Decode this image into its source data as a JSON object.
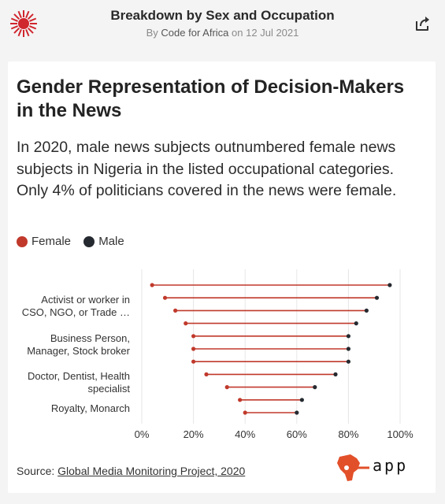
{
  "header": {
    "title": "Breakdown by Sex and Occupation",
    "byline_prefix": "By",
    "author": "Code for Africa",
    "date_prefix": "on",
    "date": "12 Jul 2021"
  },
  "icons": {
    "logo": "red-starburst-logo",
    "share": "share-icon",
    "brand": "africa-map-logo"
  },
  "colors": {
    "female": "#c0392b",
    "male": "#252a30",
    "line": "#c0392b",
    "grid": "#e6e6e6"
  },
  "chart_data": {
    "type": "dumbbell",
    "title": "Gender Representation of Decision-Makers in the News",
    "subtitle": "In 2020, male news subjects outnumbered female news subjects in Nigeria in the listed occupational categories. Only 4% of politicians covered in the news were female.",
    "legend": [
      {
        "label": "Female",
        "color": "#c0392b"
      },
      {
        "label": "Male",
        "color": "#252a30"
      }
    ],
    "legend_position": "top-left",
    "grid": "vertical",
    "xlim": [
      0,
      100
    ],
    "x_ticks": [
      "0%",
      "20%",
      "40%",
      "60%",
      "80%",
      "100%"
    ],
    "y_labels": [
      "Activist or worker in CSO, NGO, or Trade …",
      "Business Person, Manager, Stock broker",
      "Doctor, Dentist, Health specialist",
      "Royalty, Monarch"
    ],
    "series": [
      {
        "name": "Female",
        "values": [
          4,
          9,
          13,
          17,
          20,
          20,
          20,
          25,
          33,
          38,
          40
        ]
      },
      {
        "name": "Male",
        "values": [
          96,
          91,
          87,
          83,
          80,
          80,
          80,
          75,
          67,
          62,
          60
        ]
      }
    ]
  },
  "source": {
    "prefix": "Source:",
    "link_text": "Global Media Monitoring Project, 2020"
  },
  "brand": {
    "text": "app"
  }
}
